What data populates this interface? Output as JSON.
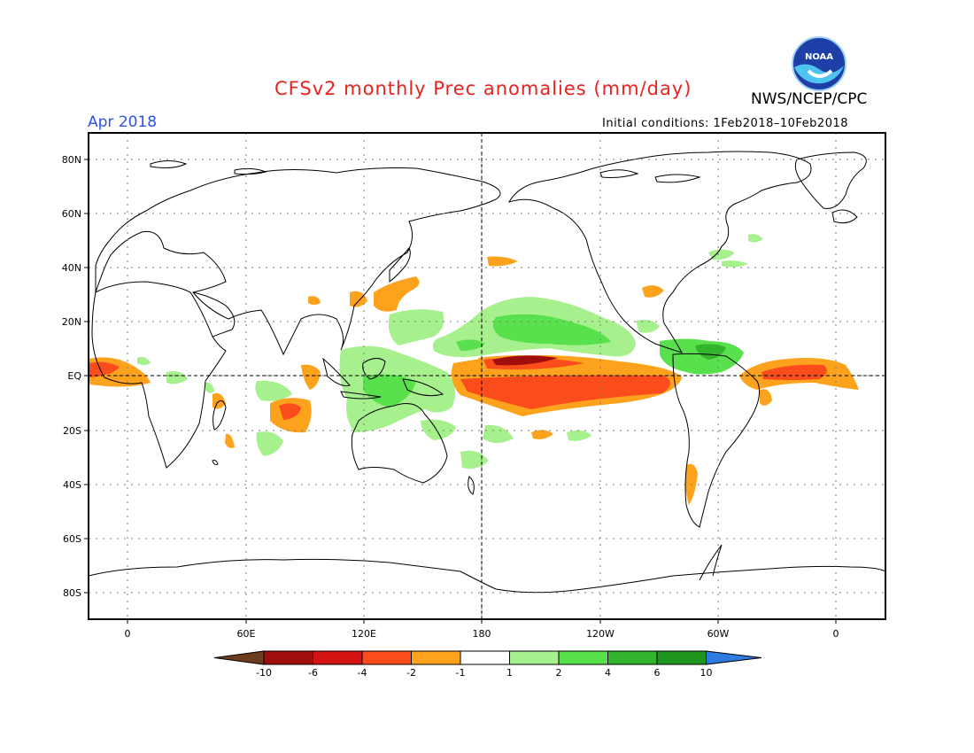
{
  "title": "CFSv2 monthly Prec anomalies (mm/day)",
  "agency": "NWS/NCEP/CPC",
  "logo_text": "NOAA",
  "month_label": "Apr 2018",
  "initial_conditions": "Initial conditions: 1Feb2018–10Feb2018",
  "lat_labels": [
    "80N",
    "60N",
    "40N",
    "20N",
    "EQ",
    "20S",
    "40S",
    "60S",
    "80S"
  ],
  "lon_labels": [
    "0",
    "60E",
    "120E",
    "180",
    "120W",
    "60W",
    "0"
  ],
  "colorbar": {
    "colors": [
      "#6e3d1d",
      "#a00d0d",
      "#d41313",
      "#fb4d1c",
      "#fca21d",
      "#ffffff",
      "#a6f08e",
      "#58e04d",
      "#32b42d",
      "#1e961e",
      "#2e7be0"
    ],
    "tick_labels": [
      "-10",
      "-6",
      "-4",
      "-2",
      "-1",
      "1",
      "2",
      "4",
      "6",
      "10"
    ]
  }
}
